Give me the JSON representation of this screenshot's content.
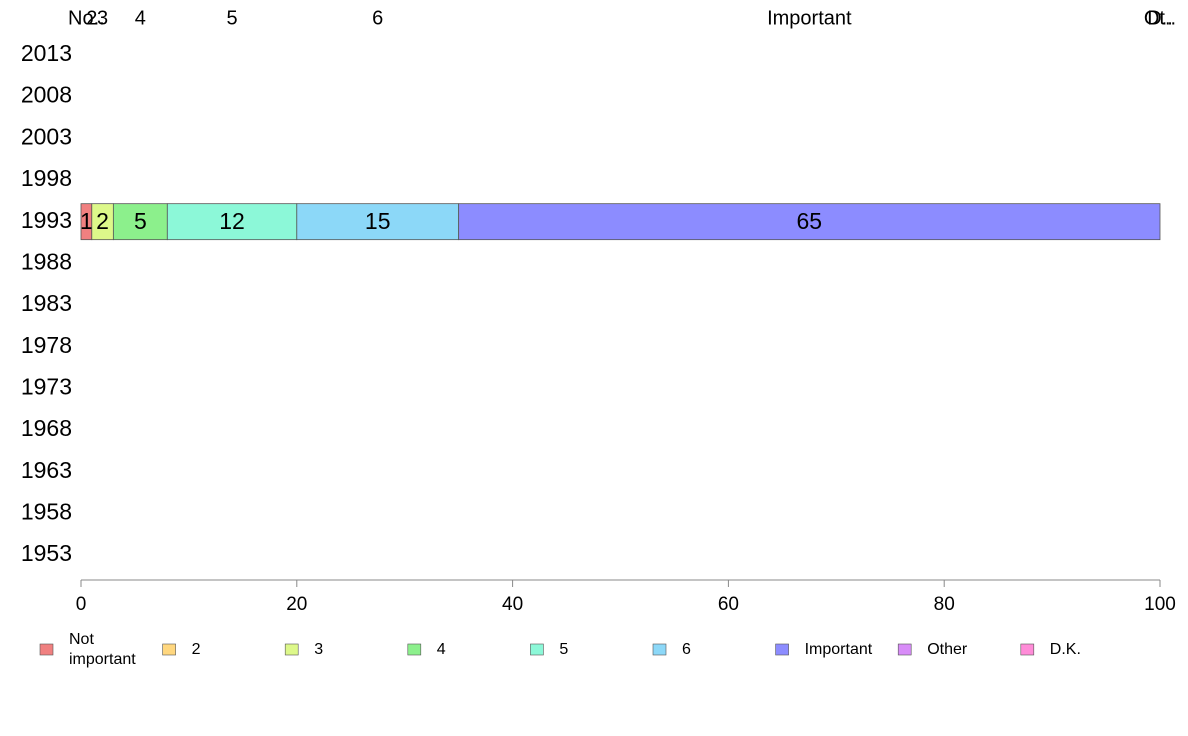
{
  "chart_data": {
    "type": "bar",
    "orientation": "horizontal",
    "stacked": true,
    "categories": [
      "2013",
      "2008",
      "2003",
      "1998",
      "1993",
      "1988",
      "1983",
      "1978",
      "1973",
      "1968",
      "1963",
      "1958",
      "1953"
    ],
    "series": [
      {
        "name": "Not important",
        "top_label": "No..",
        "color": "#f08080",
        "values": [
          0,
          0,
          0,
          0,
          1,
          0,
          0,
          0,
          0,
          0,
          0,
          0,
          0
        ]
      },
      {
        "name": "2",
        "top_label": "2",
        "color": "#ffd77f",
        "values": [
          0,
          0,
          0,
          0,
          0,
          0,
          0,
          0,
          0,
          0,
          0,
          0,
          0
        ]
      },
      {
        "name": "3",
        "top_label": "3",
        "color": "#ddf88a",
        "values": [
          0,
          0,
          0,
          0,
          2,
          0,
          0,
          0,
          0,
          0,
          0,
          0,
          0
        ]
      },
      {
        "name": "4",
        "top_label": "4",
        "color": "#8cf08c",
        "values": [
          0,
          0,
          0,
          0,
          5,
          0,
          0,
          0,
          0,
          0,
          0,
          0,
          0
        ]
      },
      {
        "name": "5",
        "top_label": "5",
        "color": "#8cf8d8",
        "values": [
          0,
          0,
          0,
          0,
          12,
          0,
          0,
          0,
          0,
          0,
          0,
          0,
          0
        ]
      },
      {
        "name": "6",
        "top_label": "6",
        "color": "#8cd8f8",
        "values": [
          0,
          0,
          0,
          0,
          15,
          0,
          0,
          0,
          0,
          0,
          0,
          0,
          0
        ]
      },
      {
        "name": "Important",
        "top_label": "Important",
        "color": "#8c8cff",
        "values": [
          0,
          0,
          0,
          0,
          65,
          0,
          0,
          0,
          0,
          0,
          0,
          0,
          0
        ]
      },
      {
        "name": "Other",
        "top_label": "Ot..",
        "color": "#d88cf8",
        "values": [
          0,
          0,
          0,
          0,
          0,
          0,
          0,
          0,
          0,
          0,
          0,
          0,
          0
        ]
      },
      {
        "name": "D.K.",
        "top_label": "D..",
        "color": "#ff8cd8",
        "values": [
          0,
          0,
          0,
          0,
          0,
          0,
          0,
          0,
          0,
          0,
          0,
          0,
          0
        ]
      }
    ],
    "top_labels_row": "1993",
    "xlim": [
      0,
      100
    ],
    "xticks": [
      0,
      20,
      40,
      60,
      80,
      100
    ],
    "legend_position": "bottom",
    "title": "",
    "xlabel": "",
    "ylabel": ""
  }
}
